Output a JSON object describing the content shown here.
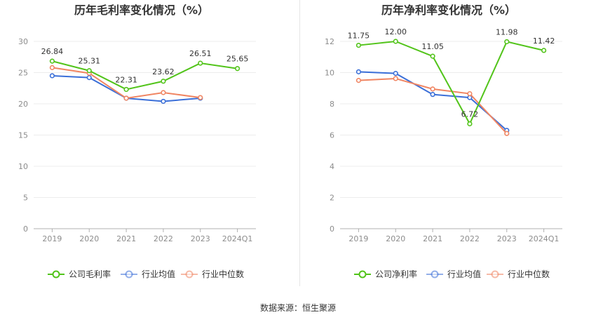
{
  "source_text": "数据来源：恒生聚源",
  "chart_data": [
    {
      "type": "line",
      "title": "历年毛利率变化情况（%）",
      "categories": [
        "2019",
        "2020",
        "2021",
        "2022",
        "2023",
        "2024Q1"
      ],
      "ylim": [
        0,
        30
      ],
      "yticks": [
        0,
        5,
        10,
        15,
        20,
        25,
        30
      ],
      "grid": true,
      "legend_position": "bottom",
      "series": [
        {
          "name": "公司毛利率",
          "color": "#52c41a",
          "labels": true,
          "values": [
            26.84,
            25.31,
            22.31,
            23.62,
            26.51,
            25.65
          ]
        },
        {
          "name": "行业均值",
          "color": "#3b6fd8",
          "labels": false,
          "values": [
            24.5,
            24.2,
            20.9,
            20.4,
            20.9,
            null
          ]
        },
        {
          "name": "行业中位数",
          "color": "#f08562",
          "labels": false,
          "values": [
            25.8,
            24.9,
            20.9,
            21.8,
            21.0,
            null
          ]
        }
      ]
    },
    {
      "type": "line",
      "title": "历年净利率变化情况（%）",
      "categories": [
        "2019",
        "2020",
        "2021",
        "2022",
        "2023",
        "2024Q1"
      ],
      "ylim": [
        0,
        12
      ],
      "yticks": [
        0,
        2,
        4,
        6,
        8,
        10,
        12
      ],
      "grid": true,
      "legend_position": "bottom",
      "series": [
        {
          "name": "公司净利率",
          "color": "#52c41a",
          "labels": true,
          "values": [
            11.75,
            12.0,
            11.05,
            6.72,
            11.98,
            11.42
          ]
        },
        {
          "name": "行业均值",
          "color": "#3b6fd8",
          "labels": false,
          "values": [
            10.05,
            9.95,
            8.6,
            8.4,
            6.3,
            null
          ]
        },
        {
          "name": "行业中位数",
          "color": "#f08562",
          "labels": false,
          "values": [
            9.5,
            9.62,
            8.95,
            8.65,
            6.1,
            null
          ]
        }
      ]
    }
  ]
}
